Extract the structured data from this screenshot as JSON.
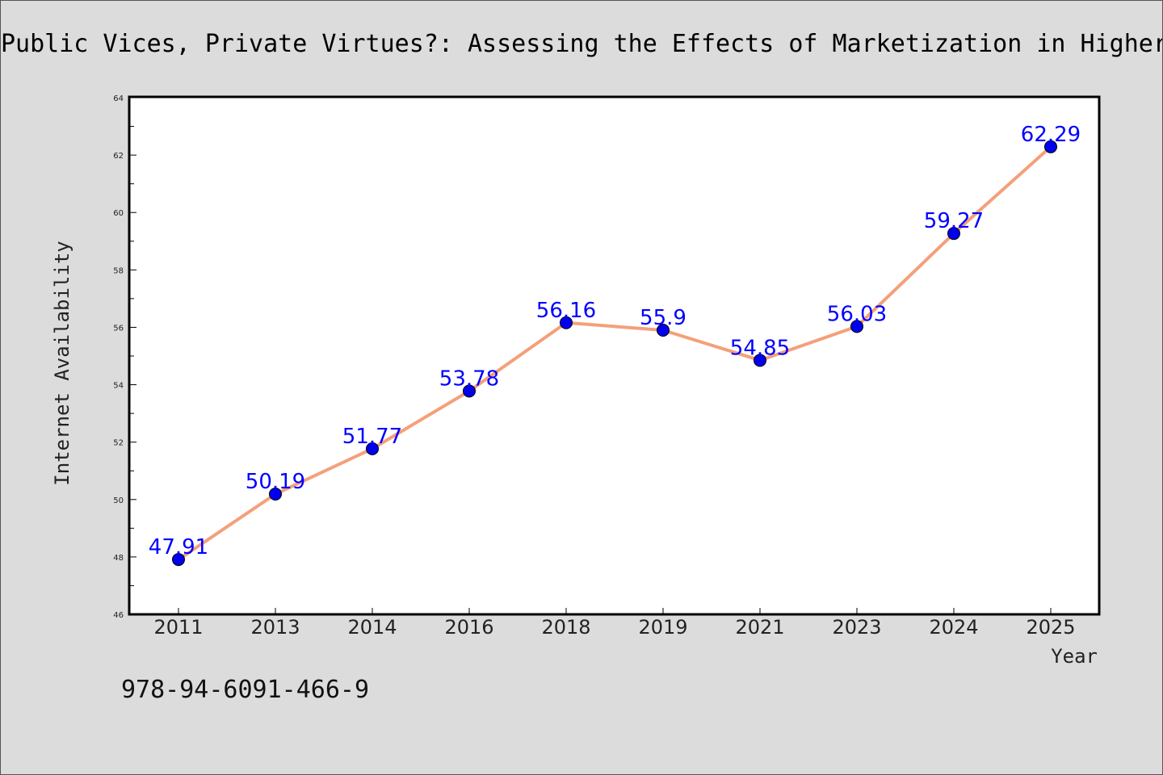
{
  "chart_data": {
    "type": "line",
    "title": "Public Vices, Private Virtues?: Assessing the Effects of Marketization in Higher",
    "xlabel": "Year",
    "ylabel": "Internet Availability",
    "categories": [
      "2011",
      "2013",
      "2014",
      "2016",
      "2018",
      "2019",
      "2021",
      "2023",
      "2024",
      "2025"
    ],
    "values": [
      47.91,
      50.19,
      51.77,
      53.78,
      56.16,
      55.9,
      54.85,
      56.03,
      59.27,
      62.29
    ],
    "data_labels": [
      "47.91",
      "50.19",
      "51.77",
      "53.78",
      "56.16",
      "55.9",
      "54.85",
      "56.03",
      "59.27",
      "62.29"
    ],
    "ylim": [
      46,
      64
    ],
    "yticks": [
      "46",
      "48",
      "50",
      "52",
      "54",
      "56",
      "58",
      "60",
      "62",
      "64"
    ],
    "grid": false,
    "line_color": "#f4a07a",
    "marker_color": "#0000ee",
    "label_color": "#0000ff"
  },
  "annotation": {
    "isbn": "978-94-6091-466-9"
  }
}
